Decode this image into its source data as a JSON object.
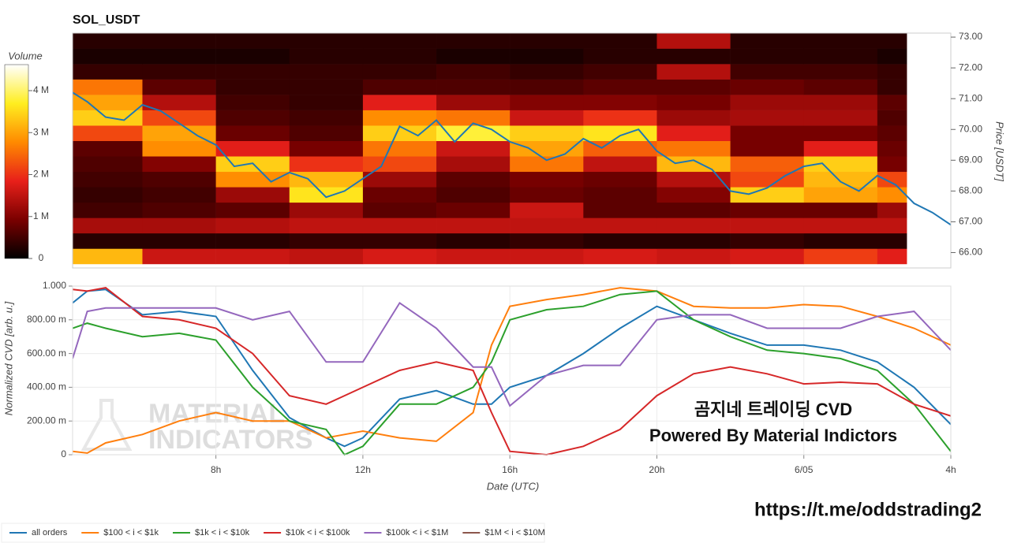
{
  "chart_data": [
    {
      "type": "heatmap",
      "title": "SOL_USDT",
      "ylabel": "Price [USDT]",
      "zlabel": "Volume",
      "xlim": [
        4.1,
        28.0
      ],
      "ylim": [
        65.5,
        73.13
      ],
      "yticks": [
        {
          "value": 66,
          "label": "66.00"
        },
        {
          "value": 67,
          "label": "67.00"
        },
        {
          "value": 68,
          "label": "68.00"
        },
        {
          "value": 69,
          "label": "69.00"
        },
        {
          "value": 70,
          "label": "70.00"
        },
        {
          "value": 71,
          "label": "71.00"
        },
        {
          "value": 72,
          "label": "72.00"
        },
        {
          "value": 73,
          "label": "73.00"
        }
      ],
      "x_bins": [
        4.1,
        6,
        8,
        10,
        12,
        14,
        16,
        18,
        20,
        22,
        24,
        26,
        26.8
      ],
      "y_bins": [
        65.63,
        66.13,
        66.63,
        67.13,
        67.63,
        68.13,
        68.63,
        69.13,
        69.63,
        70.13,
        70.63,
        71.13,
        71.63,
        72.13,
        72.63,
        73.13
      ],
      "z": [
        [
          3.2,
          1.6,
          1.6,
          1.5,
          1.7,
          1.6,
          1.6,
          1.7,
          1.6,
          1.7,
          2.1,
          1.8
        ],
        [
          0.3,
          0.3,
          0.3,
          0.4,
          0.4,
          0.3,
          0.4,
          0.3,
          0.3,
          0.4,
          0.3,
          0.3
        ],
        [
          1.3,
          1.3,
          1.4,
          1.5,
          1.5,
          1.5,
          1.5,
          1.5,
          1.5,
          1.5,
          1.5,
          1.5
        ],
        [
          0.5,
          0.6,
          0.7,
          1.2,
          0.7,
          0.8,
          1.6,
          0.7,
          0.7,
          0.8,
          0.8,
          1.2
        ],
        [
          0.4,
          0.5,
          1.2,
          3.6,
          0.8,
          0.6,
          0.8,
          0.7,
          1.0,
          3.4,
          3.0,
          2.8
        ],
        [
          0.5,
          0.6,
          2.8,
          3.2,
          1.2,
          0.7,
          0.9,
          0.8,
          1.4,
          2.2,
          3.2,
          2.2
        ],
        [
          0.6,
          1.0,
          3.4,
          2.0,
          2.2,
          1.3,
          2.6,
          1.5,
          3.2,
          2.4,
          3.4,
          0.9
        ],
        [
          0.7,
          2.8,
          1.8,
          0.9,
          2.6,
          1.6,
          3.0,
          2.4,
          2.6,
          0.9,
          1.8,
          0.8
        ],
        [
          2.2,
          3.0,
          0.8,
          0.6,
          3.4,
          3.8,
          3.4,
          3.6,
          1.8,
          0.9,
          0.9,
          0.7
        ],
        [
          3.4,
          2.2,
          0.6,
          0.5,
          2.8,
          2.6,
          1.6,
          2.0,
          1.2,
          1.3,
          1.3,
          0.6
        ],
        [
          3.0,
          1.4,
          0.5,
          0.4,
          1.8,
          1.2,
          1.0,
          1.0,
          0.9,
          1.2,
          1.2,
          0.7
        ],
        [
          2.6,
          0.7,
          0.4,
          0.4,
          0.6,
          0.6,
          0.6,
          0.7,
          0.7,
          0.8,
          0.7,
          0.4
        ],
        [
          0.4,
          0.4,
          0.4,
          0.4,
          0.4,
          0.5,
          0.4,
          0.5,
          1.4,
          0.5,
          0.5,
          0.4
        ],
        [
          0.2,
          0.2,
          0.2,
          0.3,
          0.3,
          0.2,
          0.2,
          0.3,
          0.3,
          0.3,
          0.3,
          0.2
        ],
        [
          0.3,
          0.3,
          0.3,
          0.3,
          0.3,
          0.3,
          0.3,
          0.3,
          1.4,
          0.3,
          0.3,
          0.3
        ]
      ],
      "colorscale": [
        "#000000",
        "#7a0000",
        "#e8201a",
        "#ff8a00",
        "#ffee20",
        "#ffffff"
      ],
      "zlim": [
        0,
        4.62
      ],
      "zticks": [
        0,
        {
          "value": 1,
          "label": "1 M"
        },
        {
          "value": 2,
          "label": "2 M"
        },
        {
          "value": 3,
          "label": "3 M"
        },
        {
          "value": 4,
          "label": "4 M"
        }
      ],
      "price": {
        "color": "#1f77b4",
        "x": [
          4.1,
          4.5,
          5,
          5.5,
          6,
          6.5,
          7,
          7.5,
          8,
          8.5,
          9,
          9.5,
          10,
          10.5,
          11,
          11.5,
          12,
          12.5,
          13,
          13.5,
          14,
          14.5,
          15,
          15.5,
          16,
          16.5,
          17,
          17.5,
          18,
          18.5,
          19,
          19.5,
          20,
          20.5,
          21,
          21.5,
          22,
          22.5,
          23,
          23.5,
          24,
          24.5,
          25,
          25.5,
          26,
          26.5,
          27,
          27.5,
          28
        ],
        "values": [
          71.2,
          70.9,
          70.4,
          70.3,
          70.8,
          70.6,
          70.2,
          69.8,
          69.5,
          68.8,
          68.9,
          68.3,
          68.6,
          68.4,
          67.8,
          68.0,
          68.4,
          68.8,
          70.1,
          69.8,
          70.3,
          69.6,
          70.2,
          70.0,
          69.6,
          69.4,
          69.0,
          69.2,
          69.7,
          69.4,
          69.8,
          70.0,
          69.3,
          68.9,
          69.0,
          68.7,
          68.0,
          67.9,
          68.1,
          68.5,
          68.8,
          68.9,
          68.3,
          68.0,
          68.5,
          68.2,
          67.6,
          67.3,
          66.9
        ]
      }
    },
    {
      "type": "line",
      "xlabel": "Date (UTC)",
      "ylabel": "Normalized CVD [arb. u.]",
      "xlim": [
        4.1,
        28.0
      ],
      "ylim": [
        0,
        1.0
      ],
      "xticks": [
        {
          "value": 8,
          "label": "8h"
        },
        {
          "value": 12,
          "label": "12h"
        },
        {
          "value": 16,
          "label": "16h"
        },
        {
          "value": 20,
          "label": "20h"
        },
        {
          "value": 24,
          "label": "6/05"
        },
        {
          "value": 28,
          "label": "4h"
        }
      ],
      "yticks": [
        0,
        {
          "value": 0.2,
          "label": "200.00 m"
        },
        {
          "value": 0.4,
          "label": "400.00 m"
        },
        {
          "value": 0.6,
          "label": "600.00 m"
        },
        {
          "value": 0.8,
          "label": "800.00 m"
        },
        {
          "value": 1,
          "label": "1.000"
        }
      ],
      "grid": true,
      "x": [
        4.1,
        4.5,
        5,
        6,
        7,
        8,
        9,
        10,
        11,
        11.5,
        12,
        13,
        14,
        15,
        15.5,
        16,
        17,
        18,
        19,
        20,
        21,
        22,
        23,
        24,
        25,
        26,
        27,
        28
      ],
      "series": [
        {
          "name": "all orders",
          "color": "#1f77b4",
          "values": [
            0.9,
            0.97,
            0.98,
            0.83,
            0.85,
            0.82,
            0.5,
            0.22,
            0.1,
            0.05,
            0.1,
            0.33,
            0.38,
            0.3,
            0.3,
            0.4,
            0.47,
            0.6,
            0.75,
            0.88,
            0.8,
            0.72,
            0.65,
            0.65,
            0.62,
            0.55,
            0.4,
            0.18
          ]
        },
        {
          "name": "$100 < i < $1k",
          "color": "#ff7f0e",
          "values": [
            0.02,
            0.01,
            0.07,
            0.12,
            0.2,
            0.25,
            0.2,
            0.2,
            0.1,
            0.12,
            0.14,
            0.1,
            0.08,
            0.25,
            0.65,
            0.88,
            0.92,
            0.95,
            0.99,
            0.97,
            0.88,
            0.87,
            0.87,
            0.89,
            0.88,
            0.82,
            0.75,
            0.65
          ]
        },
        {
          "name": "$1k < i < $10k",
          "color": "#2ca02c",
          "values": [
            0.75,
            0.78,
            0.75,
            0.7,
            0.72,
            0.68,
            0.4,
            0.2,
            0.15,
            0,
            0.05,
            0.3,
            0.3,
            0.4,
            0.55,
            0.8,
            0.86,
            0.88,
            0.95,
            0.97,
            0.8,
            0.7,
            0.62,
            0.6,
            0.57,
            0.5,
            0.3,
            0.02
          ]
        },
        {
          "name": "$10k < i < $100k",
          "color": "#d62728",
          "values": [
            0.98,
            0.97,
            0.99,
            0.82,
            0.8,
            0.75,
            0.6,
            0.35,
            0.3,
            0.35,
            0.4,
            0.5,
            0.55,
            0.5,
            0.25,
            0.02,
            0,
            0.05,
            0.15,
            0.35,
            0.48,
            0.52,
            0.48,
            0.42,
            0.43,
            0.42,
            0.3,
            0.23
          ]
        },
        {
          "name": "$100k < i < $1M",
          "color": "#9467bd",
          "values": [
            0.57,
            0.85,
            0.87,
            0.87,
            0.87,
            0.87,
            0.8,
            0.85,
            0.55,
            0.55,
            0.55,
            0.9,
            0.75,
            0.52,
            0.52,
            0.29,
            0.47,
            0.53,
            0.53,
            0.8,
            0.83,
            0.83,
            0.75,
            0.75,
            0.75,
            0.82,
            0.85,
            0.62
          ]
        },
        {
          "name": "$1M < i < $10M",
          "color": "#8c564b",
          "values": [
            null,
            null,
            null,
            null,
            null,
            null,
            null,
            null,
            null,
            null,
            null,
            null,
            null,
            null,
            null,
            null,
            null,
            null,
            null,
            null,
            null,
            null,
            null,
            null,
            null,
            null,
            null,
            null
          ]
        }
      ],
      "annotations": [
        "곰지네 트레이딩 CVD",
        "Powered By Material Indictors"
      ],
      "watermark": [
        "MATERIAL",
        "INDICATORS"
      ]
    }
  ],
  "footer": {
    "link": "https://t.me/oddstrading2"
  }
}
